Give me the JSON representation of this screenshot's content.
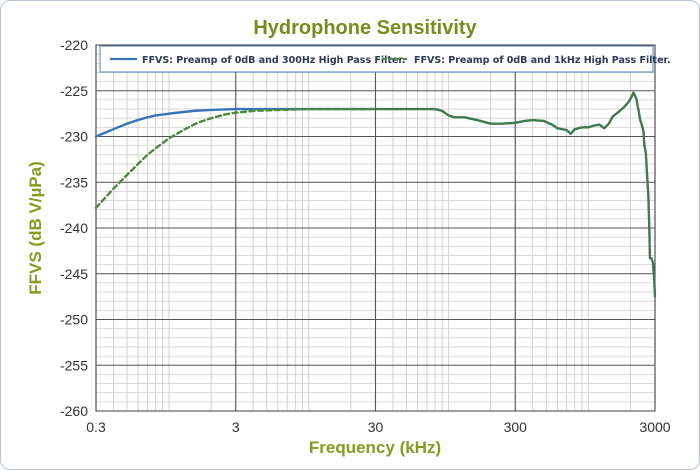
{
  "chart_data": {
    "type": "line",
    "title": "Hydrophone Sensitivity",
    "xlabel": "Frequency (kHz)",
    "ylabel": "FFVS (dB V/µPa)",
    "x_scale": "log",
    "xlim": [
      0.3,
      3000
    ],
    "ylim": [
      -260,
      -220
    ],
    "x_ticks": [
      0.3,
      3,
      30,
      300,
      3000
    ],
    "x_tick_labels": [
      "0.3",
      "3",
      "30",
      "300",
      "3000"
    ],
    "y_ticks": [
      -220,
      -225,
      -230,
      -235,
      -240,
      -245,
      -250,
      -255,
      -260
    ],
    "y_tick_labels": [
      "-220",
      "-225",
      "-230",
      "-235",
      "-240",
      "-245",
      "-250",
      "-255",
      "-260"
    ],
    "grid": true,
    "legend_position": "top",
    "series": [
      {
        "name": "FFVS: Preamp of 0dB and 300Hz High Pass Filter.",
        "color": "#3a74b8",
        "dash": "solid",
        "points": [
          [
            0.3,
            -230.0
          ],
          [
            0.4,
            -229.2
          ],
          [
            0.5,
            -228.6
          ],
          [
            0.6,
            -228.2
          ],
          [
            0.7,
            -227.9
          ],
          [
            0.8,
            -227.7
          ],
          [
            1.0,
            -227.5
          ],
          [
            1.5,
            -227.2
          ],
          [
            2,
            -227.1
          ],
          [
            3,
            -227.0
          ],
          [
            5,
            -227.0
          ],
          [
            10,
            -227.0
          ],
          [
            20,
            -227.0
          ],
          [
            30,
            -227.0
          ]
        ]
      },
      {
        "name": "FFVS: Preamp of 0dB and 1kHz High Pass Filter.",
        "color": "#4a8a3a",
        "dash": "dashed",
        "points": [
          [
            0.3,
            -237.8
          ],
          [
            0.4,
            -235.7
          ],
          [
            0.5,
            -234.2
          ],
          [
            0.6,
            -233.0
          ],
          [
            0.7,
            -232.0
          ],
          [
            0.8,
            -231.3
          ],
          [
            1.0,
            -230.2
          ],
          [
            1.3,
            -229.2
          ],
          [
            1.6,
            -228.5
          ],
          [
            2,
            -228.0
          ],
          [
            2.5,
            -227.6
          ],
          [
            3,
            -227.4
          ],
          [
            4,
            -227.2
          ],
          [
            6,
            -227.1
          ],
          [
            10,
            -227.0
          ],
          [
            30,
            -227.0
          ]
        ]
      },
      {
        "name": "",
        "color": "#3f7a4c",
        "dash": "solid",
        "points": [
          [
            30,
            -227.0
          ],
          [
            60,
            -227.0
          ],
          [
            80,
            -227.0
          ],
          [
            90,
            -227.2
          ],
          [
            100,
            -227.7
          ],
          [
            110,
            -227.9
          ],
          [
            130,
            -227.9
          ],
          [
            160,
            -228.2
          ],
          [
            200,
            -228.6
          ],
          [
            240,
            -228.6
          ],
          [
            300,
            -228.5
          ],
          [
            350,
            -228.3
          ],
          [
            400,
            -228.2
          ],
          [
            480,
            -228.3
          ],
          [
            550,
            -228.7
          ],
          [
            600,
            -229.1
          ],
          [
            700,
            -229.3
          ],
          [
            750,
            -229.7
          ],
          [
            800,
            -229.2
          ],
          [
            900,
            -229.0
          ],
          [
            1000,
            -229.0
          ],
          [
            1100,
            -228.8
          ],
          [
            1200,
            -228.7
          ],
          [
            1300,
            -229.1
          ],
          [
            1400,
            -228.6
          ],
          [
            1500,
            -227.8
          ],
          [
            1650,
            -227.3
          ],
          [
            1800,
            -226.8
          ],
          [
            1950,
            -226.2
          ],
          [
            2050,
            -225.6
          ],
          [
            2100,
            -225.2
          ],
          [
            2200,
            -225.8
          ],
          [
            2280,
            -227.0
          ],
          [
            2350,
            -228.2
          ],
          [
            2420,
            -228.8
          ],
          [
            2480,
            -229.4
          ],
          [
            2520,
            -231.0
          ],
          [
            2580,
            -231.8
          ],
          [
            2640,
            -234.5
          ],
          [
            2690,
            -236.5
          ],
          [
            2730,
            -240.0
          ],
          [
            2760,
            -243.3
          ],
          [
            2830,
            -243.3
          ],
          [
            2900,
            -243.8
          ],
          [
            2960,
            -245.5
          ],
          [
            3000,
            -247.5
          ]
        ]
      }
    ]
  }
}
